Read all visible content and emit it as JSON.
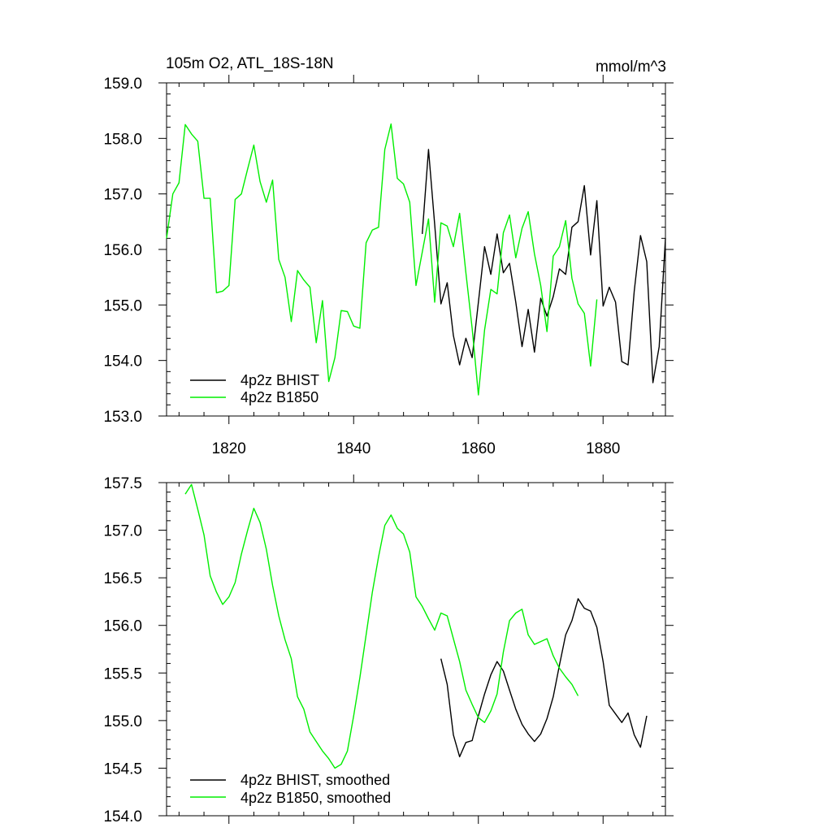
{
  "title_left": "105m O2, ATL_18S-18N",
  "title_right": "mmol/m^3",
  "colors": {
    "bhist": "#000000",
    "b1850": "#00ee00"
  },
  "chart_data": [
    {
      "type": "line",
      "title": "105m O2, ATL_18S-18N",
      "units": "mmol/m^3",
      "xlim": [
        1810,
        1890
      ],
      "ylim": [
        153.0,
        159.0
      ],
      "xticks": [
        1820,
        1840,
        1860,
        1880
      ],
      "xtick_labels": [
        "1820",
        "1840",
        "1860",
        "1880"
      ],
      "yticks": [
        153.0,
        154.0,
        155.0,
        156.0,
        157.0,
        158.0,
        159.0
      ],
      "ytick_labels": [
        "153.0",
        "154.0",
        "155.0",
        "156.0",
        "157.0",
        "158.0",
        "159.0"
      ],
      "legend": [
        "4p2z BHIST",
        "4p2z B1850"
      ],
      "series": [
        {
          "name": "4p2z BHIST",
          "color": "#000000",
          "x_start": 1851,
          "values": [
            156.28,
            157.8,
            156.45,
            155.02,
            155.4,
            154.45,
            153.92,
            154.4,
            154.05,
            155.05,
            156.05,
            155.55,
            156.28,
            155.58,
            155.75,
            155.05,
            154.25,
            154.92,
            154.15,
            155.12,
            154.8,
            155.15,
            155.65,
            155.55,
            156.4,
            156.5,
            157.15,
            155.9,
            156.88,
            154.98,
            155.32,
            155.05,
            153.98,
            153.92,
            155.25,
            156.25,
            155.78,
            153.6,
            154.25,
            156.2
          ]
        },
        {
          "name": "4p2z B1850",
          "color": "#00ee00",
          "x_start": 1810,
          "values": [
            156.2,
            157.0,
            157.2,
            158.25,
            158.08,
            157.95,
            156.92,
            156.92,
            155.22,
            155.25,
            155.35,
            156.9,
            157.0,
            157.45,
            157.88,
            157.22,
            156.85,
            157.25,
            155.82,
            155.5,
            154.7,
            155.62,
            155.45,
            155.32,
            154.32,
            155.08,
            153.62,
            154.05,
            154.9,
            154.88,
            154.62,
            154.58,
            156.12,
            156.35,
            156.4,
            157.8,
            158.26,
            157.28,
            157.18,
            156.85,
            155.35,
            155.95,
            156.55,
            155.05,
            156.48,
            156.42,
            156.05,
            156.65,
            155.58,
            154.58,
            153.38,
            154.55,
            155.28,
            155.2,
            156.3,
            156.62,
            155.85,
            156.38,
            156.68,
            155.92,
            155.35,
            154.52,
            155.88,
            156.05,
            156.52,
            155.48,
            155.02,
            154.85,
            153.9,
            155.1
          ]
        }
      ]
    },
    {
      "type": "line",
      "xlim": [
        1810,
        1890
      ],
      "ylim": [
        154.0,
        157.5
      ],
      "xticks": [
        1820,
        1840,
        1860,
        1880
      ],
      "yticks": [
        154.0,
        154.5,
        155.0,
        155.5,
        156.0,
        156.5,
        157.0,
        157.5
      ],
      "ytick_labels": [
        "154.0",
        "154.5",
        "155.0",
        "155.5",
        "156.0",
        "156.5",
        "157.0",
        "157.5"
      ],
      "legend": [
        "4p2z BHIST, smoothed",
        "4p2z B1850, smoothed"
      ],
      "series": [
        {
          "name": "4p2z BHIST, smoothed",
          "color": "#000000",
          "x_start": 1854,
          "values": [
            155.65,
            155.38,
            154.85,
            154.62,
            154.77,
            154.79,
            155.05,
            155.28,
            155.48,
            155.62,
            155.52,
            155.32,
            155.12,
            154.96,
            154.86,
            154.78,
            154.86,
            155.02,
            155.25,
            155.58,
            155.9,
            156.05,
            156.28,
            156.18,
            156.15,
            155.98,
            155.62,
            155.16,
            155.07,
            154.98,
            155.08,
            154.85,
            154.72,
            155.05
          ]
        },
        {
          "name": "4p2z B1850, smoothed",
          "color": "#00ee00",
          "x_start": 1813,
          "values": [
            157.38,
            157.48,
            157.22,
            156.95,
            156.52,
            156.35,
            156.22,
            156.3,
            156.45,
            156.75,
            157.0,
            157.23,
            157.08,
            156.8,
            156.42,
            156.1,
            155.85,
            155.65,
            155.25,
            155.12,
            154.88,
            154.78,
            154.68,
            154.6,
            154.5,
            154.54,
            154.68,
            155.05,
            155.45,
            155.9,
            156.35,
            156.72,
            157.05,
            157.16,
            157.02,
            156.96,
            156.77,
            156.3,
            156.2,
            156.07,
            155.95,
            156.13,
            156.1,
            155.86,
            155.62,
            155.32,
            155.17,
            155.03,
            154.98,
            155.1,
            155.28,
            155.72,
            156.05,
            156.13,
            156.17,
            155.9,
            155.8,
            155.83,
            155.86,
            155.68,
            155.55,
            155.46,
            155.38,
            155.26
          ]
        }
      ]
    }
  ]
}
